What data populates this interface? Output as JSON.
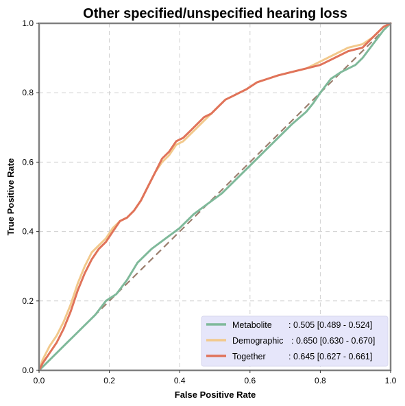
{
  "chart_data": {
    "type": "line",
    "title": "Other specified/unspecified hearing loss",
    "xlabel": "False Positive Rate",
    "ylabel": "True Positive Rate",
    "xlim": [
      0,
      1
    ],
    "ylim": [
      0,
      1
    ],
    "xticks": [
      "0.0",
      "0.2",
      "0.4",
      "0.6",
      "0.8",
      "1.0"
    ],
    "yticks": [
      "0.0",
      "0.2",
      "0.4",
      "0.6",
      "0.8",
      "1.0"
    ],
    "grid": true,
    "legend_position": "bottom-right",
    "chance_line": {
      "x": [
        0,
        1
      ],
      "y": [
        0,
        1
      ],
      "color": "#9c7f6f",
      "style": "dashed"
    },
    "series": [
      {
        "name": "Metabolite",
        "label": ": 0.505 [0.489 - 0.524]",
        "color": "#7fb99a",
        "x": [
          0,
          0.02,
          0.05,
          0.08,
          0.1,
          0.13,
          0.16,
          0.19,
          0.22,
          0.25,
          0.28,
          0.32,
          0.36,
          0.4,
          0.44,
          0.48,
          0.52,
          0.56,
          0.6,
          0.64,
          0.68,
          0.72,
          0.76,
          0.78,
          0.8,
          0.83,
          0.86,
          0.88,
          0.9,
          0.92,
          0.95,
          0.98,
          1.0
        ],
        "y": [
          0,
          0.02,
          0.05,
          0.08,
          0.1,
          0.13,
          0.16,
          0.2,
          0.22,
          0.26,
          0.31,
          0.35,
          0.38,
          0.41,
          0.45,
          0.48,
          0.51,
          0.55,
          0.59,
          0.63,
          0.67,
          0.71,
          0.745,
          0.77,
          0.8,
          0.84,
          0.86,
          0.87,
          0.88,
          0.9,
          0.94,
          0.98,
          1.0
        ]
      },
      {
        "name": "Demographic",
        "label": ": 0.650 [0.630 - 0.670]",
        "color": "#f2c98c",
        "x": [
          0,
          0.01,
          0.03,
          0.05,
          0.07,
          0.09,
          0.11,
          0.13,
          0.15,
          0.17,
          0.19,
          0.21,
          0.23,
          0.25,
          0.27,
          0.29,
          0.31,
          0.33,
          0.35,
          0.37,
          0.39,
          0.41,
          0.43,
          0.45,
          0.47,
          0.49,
          0.51,
          0.53,
          0.55,
          0.57,
          0.59,
          0.62,
          0.65,
          0.68,
          0.72,
          0.76,
          0.8,
          0.84,
          0.88,
          0.92,
          0.95,
          0.98,
          1.0
        ],
        "y": [
          0,
          0.03,
          0.07,
          0.1,
          0.14,
          0.19,
          0.25,
          0.3,
          0.34,
          0.36,
          0.38,
          0.41,
          0.43,
          0.44,
          0.46,
          0.49,
          0.53,
          0.57,
          0.6,
          0.62,
          0.65,
          0.66,
          0.68,
          0.7,
          0.72,
          0.74,
          0.76,
          0.78,
          0.79,
          0.8,
          0.81,
          0.83,
          0.84,
          0.85,
          0.86,
          0.87,
          0.89,
          0.91,
          0.93,
          0.94,
          0.96,
          0.99,
          1.0
        ]
      },
      {
        "name": "Together",
        "label": ": 0.645 [0.627 - 0.661]",
        "color": "#e0735a",
        "x": [
          0,
          0.01,
          0.03,
          0.05,
          0.07,
          0.09,
          0.11,
          0.13,
          0.15,
          0.17,
          0.19,
          0.21,
          0.23,
          0.25,
          0.27,
          0.29,
          0.31,
          0.33,
          0.35,
          0.37,
          0.39,
          0.41,
          0.43,
          0.45,
          0.47,
          0.49,
          0.51,
          0.53,
          0.55,
          0.57,
          0.59,
          0.62,
          0.65,
          0.68,
          0.72,
          0.76,
          0.8,
          0.84,
          0.88,
          0.92,
          0.95,
          0.98,
          1.0
        ],
        "y": [
          0,
          0.02,
          0.05,
          0.08,
          0.12,
          0.17,
          0.23,
          0.28,
          0.32,
          0.35,
          0.37,
          0.4,
          0.43,
          0.44,
          0.46,
          0.49,
          0.53,
          0.57,
          0.61,
          0.63,
          0.66,
          0.67,
          0.69,
          0.71,
          0.73,
          0.74,
          0.76,
          0.78,
          0.79,
          0.8,
          0.81,
          0.83,
          0.84,
          0.85,
          0.86,
          0.87,
          0.88,
          0.9,
          0.92,
          0.93,
          0.96,
          0.99,
          1.0
        ]
      }
    ]
  }
}
